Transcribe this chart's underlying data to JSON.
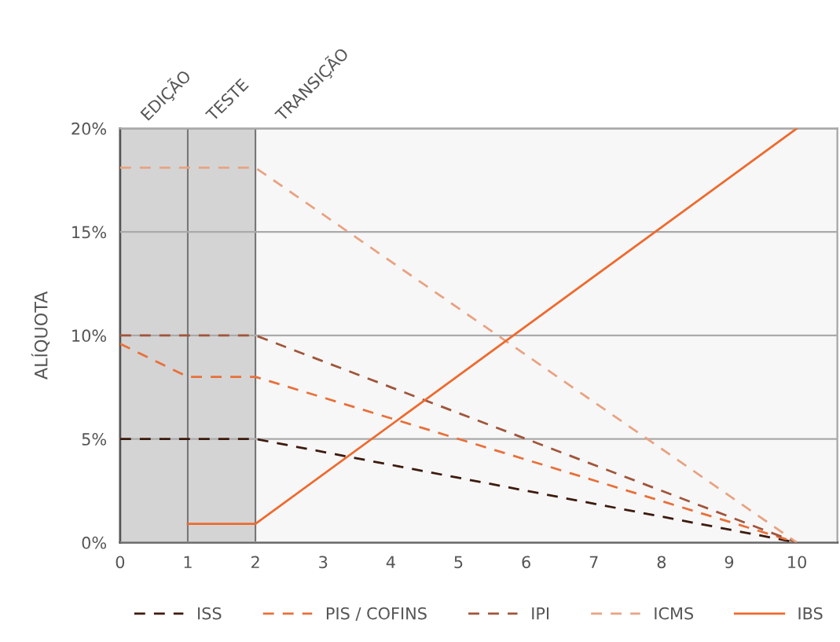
{
  "chart_data": {
    "type": "line",
    "ylabel": "ALÍQUOTA",
    "xlim": [
      0,
      10.6
    ],
    "xticks": [
      0,
      1,
      2,
      3,
      4,
      5,
      6,
      7,
      8,
      9,
      10
    ],
    "ylim": [
      0,
      20
    ],
    "yticks": [
      {
        "value": 0,
        "label": "0%"
      },
      {
        "value": 5,
        "label": "5%"
      },
      {
        "value": 10,
        "label": "10%"
      },
      {
        "value": 15,
        "label": "15%"
      },
      {
        "value": 20,
        "label": "20%"
      }
    ],
    "grid": "y",
    "legend": "bottom",
    "bands": [
      {
        "axis": "x",
        "from": 0,
        "to": 1,
        "label": "EDIÇÃO",
        "color": "#d4d4d4"
      },
      {
        "axis": "x",
        "from": 1,
        "to": 2,
        "label": "TESTE",
        "color": "#d4d4d4"
      },
      {
        "axis": "x",
        "from": 2,
        "to": 10.6,
        "label": "TRANSIÇÃO",
        "color": "#f7f7f7"
      }
    ],
    "series": [
      {
        "name": "ISS",
        "color": "#3d1a0e",
        "line_style": "dashed",
        "x": [
          0,
          2,
          10
        ],
        "values": [
          5,
          5,
          0
        ]
      },
      {
        "name": "PIS / COFINS",
        "color": "#e8703a",
        "line_style": "dashed",
        "x": [
          0,
          1,
          2,
          10
        ],
        "values": [
          9.6,
          8,
          8,
          0
        ]
      },
      {
        "name": "IPI",
        "color": "#a0553a",
        "line_style": "dashed",
        "x": [
          0,
          2,
          10
        ],
        "values": [
          10,
          10,
          0
        ]
      },
      {
        "name": "ICMS",
        "color": "#e8a383",
        "line_style": "dashed",
        "x": [
          0,
          2,
          10
        ],
        "values": [
          18.1,
          18.1,
          0
        ]
      },
      {
        "name": "IBS",
        "color": "#ee6a2e",
        "line_style": "solid",
        "x": [
          1,
          2,
          10
        ],
        "values": [
          0.9,
          0.9,
          20
        ]
      }
    ]
  }
}
